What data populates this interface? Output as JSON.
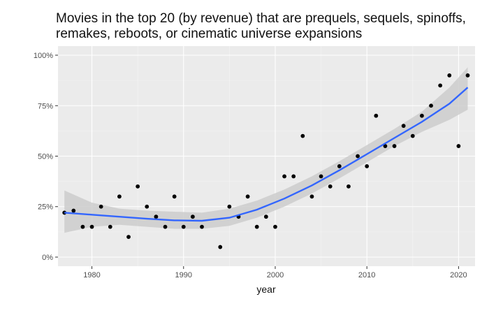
{
  "chart_data": {
    "type": "scatter",
    "title_lines": [
      "Movies in the top 20 (by revenue) that are prequels, sequels, spinoffs,",
      "remakes, reboots, or cinematic universe expansions"
    ],
    "xlabel": "year",
    "ylabel": "",
    "xlim": [
      1976.3,
      2021.8
    ],
    "ylim": [
      -0.045,
      1.045
    ],
    "x_ticks": [
      1980,
      1990,
      2000,
      2010,
      2020
    ],
    "x_tick_labels": [
      "1980",
      "1990",
      "2000",
      "2010",
      "2020"
    ],
    "y_ticks": [
      0,
      0.25,
      0.5,
      0.75,
      1.0
    ],
    "y_tick_labels": [
      "0%",
      "25%",
      "50%",
      "75%",
      "100%"
    ],
    "grid": true,
    "legend": "none",
    "colors": {
      "panel": "#ebebeb",
      "grid_major": "#ffffff",
      "grid_minor": "#f5f5f5",
      "point": "#000000",
      "smooth_line": "#3366ff",
      "ribbon": "#cccccc"
    },
    "points": [
      {
        "x": 1977,
        "y": 0.22
      },
      {
        "x": 1978,
        "y": 0.23
      },
      {
        "x": 1979,
        "y": 0.15
      },
      {
        "x": 1980,
        "y": 0.15
      },
      {
        "x": 1981,
        "y": 0.25
      },
      {
        "x": 1982,
        "y": 0.15
      },
      {
        "x": 1983,
        "y": 0.3
      },
      {
        "x": 1984,
        "y": 0.1
      },
      {
        "x": 1985,
        "y": 0.35
      },
      {
        "x": 1986,
        "y": 0.25
      },
      {
        "x": 1987,
        "y": 0.2
      },
      {
        "x": 1988,
        "y": 0.15
      },
      {
        "x": 1989,
        "y": 0.3
      },
      {
        "x": 1990,
        "y": 0.15
      },
      {
        "x": 1991,
        "y": 0.2
      },
      {
        "x": 1992,
        "y": 0.15
      },
      {
        "x": 1994,
        "y": 0.05
      },
      {
        "x": 1995,
        "y": 0.25
      },
      {
        "x": 1996,
        "y": 0.2
      },
      {
        "x": 1997,
        "y": 0.3
      },
      {
        "x": 1998,
        "y": 0.15
      },
      {
        "x": 1999,
        "y": 0.2
      },
      {
        "x": 2000,
        "y": 0.15
      },
      {
        "x": 2001,
        "y": 0.4
      },
      {
        "x": 2002,
        "y": 0.4
      },
      {
        "x": 2003,
        "y": 0.6
      },
      {
        "x": 2004,
        "y": 0.3
      },
      {
        "x": 2005,
        "y": 0.4
      },
      {
        "x": 2006,
        "y": 0.35
      },
      {
        "x": 2007,
        "y": 0.45
      },
      {
        "x": 2008,
        "y": 0.35
      },
      {
        "x": 2009,
        "y": 0.5
      },
      {
        "x": 2010,
        "y": 0.45
      },
      {
        "x": 2011,
        "y": 0.7
      },
      {
        "x": 2012,
        "y": 0.55
      },
      {
        "x": 2013,
        "y": 0.55
      },
      {
        "x": 2014,
        "y": 0.65
      },
      {
        "x": 2015,
        "y": 0.6
      },
      {
        "x": 2016,
        "y": 0.7
      },
      {
        "x": 2017,
        "y": 0.75
      },
      {
        "x": 2018,
        "y": 0.85
      },
      {
        "x": 2019,
        "y": 0.9
      },
      {
        "x": 2020,
        "y": 0.55
      },
      {
        "x": 2021,
        "y": 0.9
      }
    ],
    "smooth": [
      {
        "x": 1977,
        "y": 0.22,
        "lo": 0.12,
        "hi": 0.33
      },
      {
        "x": 1980,
        "y": 0.21,
        "lo": 0.15,
        "hi": 0.27
      },
      {
        "x": 1983,
        "y": 0.2,
        "lo": 0.16,
        "hi": 0.24
      },
      {
        "x": 1986,
        "y": 0.19,
        "lo": 0.15,
        "hi": 0.23
      },
      {
        "x": 1989,
        "y": 0.182,
        "lo": 0.14,
        "hi": 0.225
      },
      {
        "x": 1992,
        "y": 0.18,
        "lo": 0.14,
        "hi": 0.22
      },
      {
        "x": 1995,
        "y": 0.195,
        "lo": 0.155,
        "hi": 0.24
      },
      {
        "x": 1998,
        "y": 0.235,
        "lo": 0.195,
        "hi": 0.28
      },
      {
        "x": 2001,
        "y": 0.29,
        "lo": 0.25,
        "hi": 0.335
      },
      {
        "x": 2004,
        "y": 0.355,
        "lo": 0.315,
        "hi": 0.4
      },
      {
        "x": 2007,
        "y": 0.43,
        "lo": 0.39,
        "hi": 0.475
      },
      {
        "x": 2010,
        "y": 0.51,
        "lo": 0.47,
        "hi": 0.555
      },
      {
        "x": 2013,
        "y": 0.59,
        "lo": 0.55,
        "hi": 0.635
      },
      {
        "x": 2016,
        "y": 0.67,
        "lo": 0.62,
        "hi": 0.72
      },
      {
        "x": 2019,
        "y": 0.76,
        "lo": 0.68,
        "hi": 0.84
      },
      {
        "x": 2021,
        "y": 0.84,
        "lo": 0.73,
        "hi": 0.94
      }
    ]
  }
}
